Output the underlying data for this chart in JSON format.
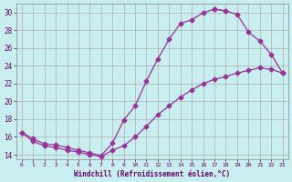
{
  "background_color": "#c8eef0",
  "grid_color": "#b0b0b0",
  "line_color": "#993399",
  "marker_color": "#993399",
  "xlabel": "Windchill (Refroidissement éolien,°C)",
  "xlabel_color": "#660066",
  "tick_color": "#660066",
  "xlim": [
    -0.5,
    23.5
  ],
  "ylim": [
    13.5,
    31.0
  ],
  "yticks": [
    14,
    16,
    18,
    20,
    22,
    24,
    26,
    28,
    30
  ],
  "xticks": [
    0,
    1,
    2,
    3,
    4,
    5,
    6,
    7,
    8,
    9,
    10,
    11,
    12,
    13,
    14,
    15,
    16,
    17,
    18,
    19,
    20,
    21,
    22,
    23
  ],
  "curve_top_x": [
    0,
    1,
    2,
    3,
    4,
    5,
    6,
    7,
    8,
    9,
    10,
    11,
    12,
    13,
    14,
    15,
    16,
    17,
    18
  ],
  "curve_top_y": [
    16.5,
    15.8,
    15.2,
    15.1,
    14.8,
    14.5,
    14.2,
    13.9,
    15.3,
    17.9,
    19.5,
    22.3,
    24.8,
    27.0,
    28.8,
    29.2,
    30.0,
    30.4,
    30.2
  ],
  "curve_mid_x": [
    0,
    1,
    2,
    3,
    4,
    5,
    6,
    7,
    8,
    9,
    10,
    11,
    12,
    13,
    14,
    15,
    16,
    17,
    18,
    19,
    20,
    21,
    22,
    23
  ],
  "curve_mid_y": [
    16.5,
    15.5,
    15.0,
    14.8,
    14.5,
    14.3,
    14.0,
    13.8,
    14.5,
    15.0,
    16.0,
    17.2,
    18.5,
    19.5,
    20.5,
    21.3,
    22.0,
    22.5,
    22.8,
    23.2,
    23.5,
    23.8,
    23.6,
    23.2
  ],
  "curve_desc_x": [
    17,
    18,
    19,
    20,
    21,
    22,
    23
  ],
  "curve_desc_y": [
    30.4,
    30.2,
    29.8,
    27.8,
    26.8,
    25.3,
    23.2
  ]
}
